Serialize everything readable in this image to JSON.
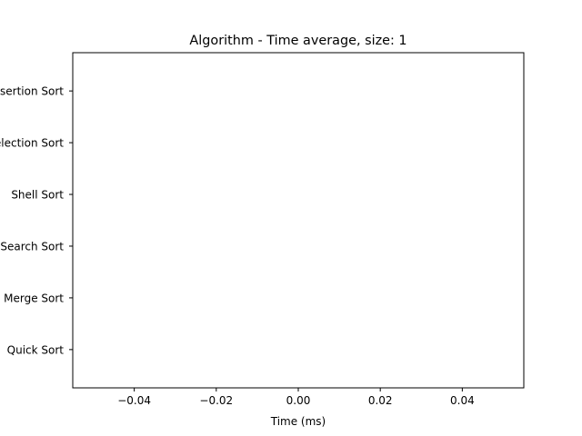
{
  "chart_data": {
    "type": "bar",
    "orientation": "horizontal",
    "title": "Algorithm - Time average, size: 1",
    "xlabel": "Time (ms)",
    "ylabel": "",
    "categories": [
      "Quick Sort",
      "Merge Sort",
      "Search Sort",
      "Shell Sort",
      "Selection Sort",
      "Insertion Sort"
    ],
    "values": [
      0,
      0,
      0,
      0,
      0,
      0
    ],
    "xlim": [
      -0.055,
      0.055
    ],
    "xticks": [
      -0.04,
      -0.02,
      0.0,
      0.02,
      0.04
    ],
    "xtick_labels": [
      "−0.04",
      "−0.02",
      "0.00",
      "0.02",
      "0.04"
    ],
    "grid": false,
    "legend": "none",
    "colors": {
      "bar": "#1f77b4",
      "axis": "#000000",
      "background": "#ffffff"
    }
  }
}
